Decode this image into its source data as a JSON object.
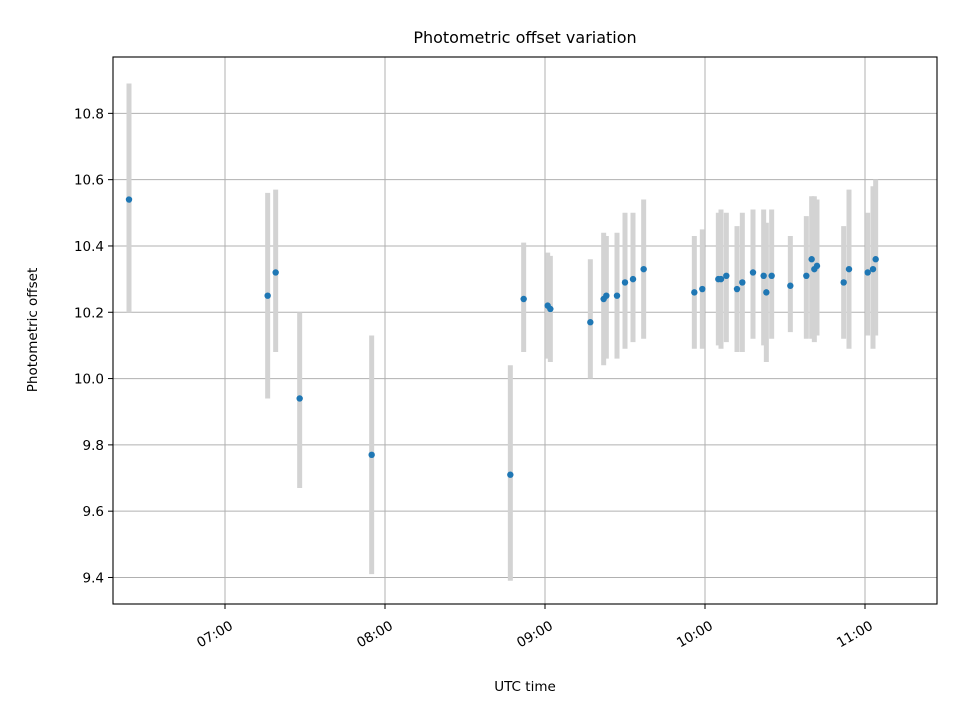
{
  "chart_data": {
    "type": "scatter",
    "title": "Photometric offset variation",
    "xlabel": "UTC time",
    "ylabel": "Photometric offset",
    "x_unit": "UTC time (HH:MM)",
    "xlim": [
      "06:18",
      "11:27"
    ],
    "ylim": [
      9.32,
      10.97
    ],
    "x_ticks": [
      "07:00",
      "08:00",
      "09:00",
      "10:00",
      "11:00"
    ],
    "y_ticks": [
      "9.4",
      "9.6",
      "9.8",
      "10.0",
      "10.2",
      "10.4",
      "10.6",
      "10.8"
    ],
    "grid": true,
    "colors": {
      "point": "#1f77b4",
      "errorbar": "#d3d3d3",
      "grid": "#b0b0b0"
    },
    "points": [
      {
        "x": "06:24",
        "y": 10.54,
        "ylow": 10.2,
        "yhigh": 10.89
      },
      {
        "x": "07:16",
        "y": 10.25,
        "ylow": 9.94,
        "yhigh": 10.56
      },
      {
        "x": "07:19",
        "y": 10.32,
        "ylow": 10.08,
        "yhigh": 10.57
      },
      {
        "x": "07:28",
        "y": 9.94,
        "ylow": 9.67,
        "yhigh": 10.2
      },
      {
        "x": "07:55",
        "y": 9.77,
        "ylow": 9.41,
        "yhigh": 10.13
      },
      {
        "x": "08:47",
        "y": 9.71,
        "ylow": 9.39,
        "yhigh": 10.04
      },
      {
        "x": "08:52",
        "y": 10.24,
        "ylow": 10.08,
        "yhigh": 10.41
      },
      {
        "x": "09:01",
        "y": 10.22,
        "ylow": 10.06,
        "yhigh": 10.38
      },
      {
        "x": "09:02",
        "y": 10.21,
        "ylow": 10.05,
        "yhigh": 10.37
      },
      {
        "x": "09:17",
        "y": 10.17,
        "ylow": 10.0,
        "yhigh": 10.36
      },
      {
        "x": "09:22",
        "y": 10.24,
        "ylow": 10.04,
        "yhigh": 10.44
      },
      {
        "x": "09:23",
        "y": 10.25,
        "ylow": 10.06,
        "yhigh": 10.43
      },
      {
        "x": "09:27",
        "y": 10.25,
        "ylow": 10.06,
        "yhigh": 10.44
      },
      {
        "x": "09:30",
        "y": 10.29,
        "ylow": 10.09,
        "yhigh": 10.5
      },
      {
        "x": "09:33",
        "y": 10.3,
        "ylow": 10.11,
        "yhigh": 10.5
      },
      {
        "x": "09:37",
        "y": 10.33,
        "ylow": 10.12,
        "yhigh": 10.54
      },
      {
        "x": "09:56",
        "y": 10.26,
        "ylow": 10.09,
        "yhigh": 10.43
      },
      {
        "x": "09:59",
        "y": 10.27,
        "ylow": 10.09,
        "yhigh": 10.45
      },
      {
        "x": "10:05",
        "y": 10.3,
        "ylow": 10.1,
        "yhigh": 10.5
      },
      {
        "x": "10:06",
        "y": 10.3,
        "ylow": 10.09,
        "yhigh": 10.51
      },
      {
        "x": "10:08",
        "y": 10.31,
        "ylow": 10.11,
        "yhigh": 10.5
      },
      {
        "x": "10:12",
        "y": 10.27,
        "ylow": 10.08,
        "yhigh": 10.46
      },
      {
        "x": "10:14",
        "y": 10.29,
        "ylow": 10.08,
        "yhigh": 10.5
      },
      {
        "x": "10:18",
        "y": 10.32,
        "ylow": 10.12,
        "yhigh": 10.51
      },
      {
        "x": "10:22",
        "y": 10.31,
        "ylow": 10.1,
        "yhigh": 10.51
      },
      {
        "x": "10:23",
        "y": 10.26,
        "ylow": 10.05,
        "yhigh": 10.47
      },
      {
        "x": "10:25",
        "y": 10.31,
        "ylow": 10.12,
        "yhigh": 10.51
      },
      {
        "x": "10:32",
        "y": 10.28,
        "ylow": 10.14,
        "yhigh": 10.43
      },
      {
        "x": "10:38",
        "y": 10.31,
        "ylow": 10.12,
        "yhigh": 10.49
      },
      {
        "x": "10:40",
        "y": 10.36,
        "ylow": 10.12,
        "yhigh": 10.55
      },
      {
        "x": "10:41",
        "y": 10.33,
        "ylow": 10.11,
        "yhigh": 10.55
      },
      {
        "x": "10:42",
        "y": 10.34,
        "ylow": 10.13,
        "yhigh": 10.54
      },
      {
        "x": "10:52",
        "y": 10.29,
        "ylow": 10.12,
        "yhigh": 10.46
      },
      {
        "x": "10:54",
        "y": 10.33,
        "ylow": 10.09,
        "yhigh": 10.57
      },
      {
        "x": "11:01",
        "y": 10.32,
        "ylow": 10.13,
        "yhigh": 10.5
      },
      {
        "x": "11:03",
        "y": 10.33,
        "ylow": 10.09,
        "yhigh": 10.58
      },
      {
        "x": "11:04",
        "y": 10.36,
        "ylow": 10.13,
        "yhigh": 10.6
      }
    ]
  }
}
